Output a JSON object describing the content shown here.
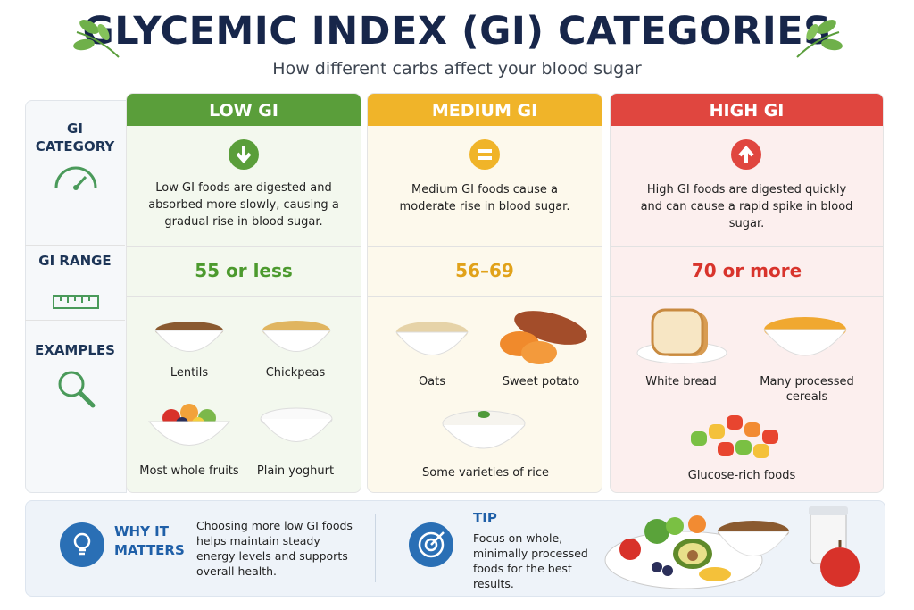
{
  "header": {
    "title": "GLYCEMIC INDEX (GI) CATEGORIES",
    "subtitle": "How different carbs affect your blood sugar"
  },
  "row_labels": [
    "GI CATEGORY",
    "GI RANGE",
    "EXAMPLES"
  ],
  "columns": [
    {
      "name": "LOW GI",
      "description": "Low GI foods are digested and absorbed more slowly, causing a gradual rise in blood sugar.",
      "range": "55 or less",
      "examples": [
        "Lentils",
        "Chickpeas",
        "Most whole fruits",
        "Plain yoghurt"
      ]
    },
    {
      "name": "MEDIUM GI",
      "description": "Medium GI foods cause a moderate rise in blood sugar.",
      "range": "56–69",
      "examples": [
        "Oats",
        "Sweet potato",
        "Some varieties of rice"
      ]
    },
    {
      "name": "HIGH GI",
      "description": "High GI foods are digested quickly and can cause a rapid spike in blood sugar.",
      "range": "70 or more",
      "examples": [
        "White bread",
        "Many processed cereals",
        "Glucose-rich foods"
      ]
    }
  ],
  "footer": {
    "why": {
      "title": "WHY IT MATTERS",
      "text": "Choosing more low GI foods helps maintain steady energy levels and supports overall health."
    },
    "tip": {
      "title": "TIP",
      "text": "Focus on whole, minimally processed foods for the best results."
    }
  }
}
